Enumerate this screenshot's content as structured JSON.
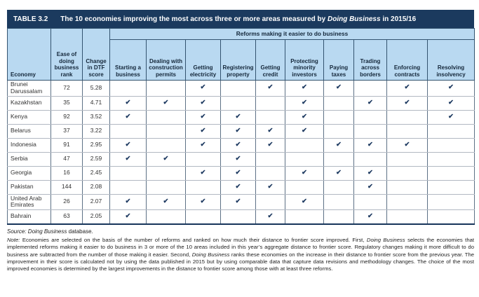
{
  "title_bar": {
    "label": "TABLE 3.2",
    "title_segments": [
      {
        "t": "The 10 economies improving the most across three or more areas measured by "
      },
      {
        "t": "Doing Business",
        "i": true
      },
      {
        "t": " in 2015/16"
      }
    ]
  },
  "table": {
    "reforms_group_header": "Reforms making it easier to do business",
    "fixed_columns": [
      "Economy",
      "Ease of doing business rank",
      "Change in DTF score"
    ],
    "reform_columns": [
      "Starting a business",
      "Dealing with construction permits",
      "Getting electricity",
      "Registering property",
      "Getting credit",
      "Protecting minority investors",
      "Paying taxes",
      "Trading across borders",
      "Enforcing contracts",
      "Resolving insolvency"
    ],
    "check_glyph": "✔",
    "rows": [
      {
        "economy": "Brunei Darussalam",
        "rank": "72",
        "dtf_change": "5.28",
        "reforms": [
          0,
          0,
          1,
          0,
          1,
          1,
          1,
          0,
          1,
          1
        ]
      },
      {
        "economy": "Kazakhstan",
        "rank": "35",
        "dtf_change": "4.71",
        "reforms": [
          1,
          1,
          1,
          0,
          0,
          1,
          0,
          1,
          1,
          1
        ]
      },
      {
        "economy": "Kenya",
        "rank": "92",
        "dtf_change": "3.52",
        "reforms": [
          1,
          0,
          1,
          1,
          0,
          1,
          0,
          0,
          0,
          1
        ]
      },
      {
        "economy": "Belarus",
        "rank": "37",
        "dtf_change": "3.22",
        "reforms": [
          0,
          0,
          1,
          1,
          1,
          1,
          0,
          0,
          0,
          0
        ]
      },
      {
        "economy": "Indonesia",
        "rank": "91",
        "dtf_change": "2.95",
        "reforms": [
          1,
          0,
          1,
          1,
          1,
          0,
          1,
          1,
          1,
          0
        ]
      },
      {
        "economy": "Serbia",
        "rank": "47",
        "dtf_change": "2.59",
        "reforms": [
          1,
          1,
          0,
          1,
          0,
          0,
          0,
          0,
          0,
          0
        ]
      },
      {
        "economy": "Georgia",
        "rank": "16",
        "dtf_change": "2.45",
        "reforms": [
          0,
          0,
          1,
          1,
          0,
          1,
          1,
          1,
          0,
          0
        ]
      },
      {
        "economy": "Pakistan",
        "rank": "144",
        "dtf_change": "2.08",
        "reforms": [
          0,
          0,
          0,
          1,
          1,
          0,
          0,
          1,
          0,
          0
        ]
      },
      {
        "economy": "United Arab Emirates",
        "rank": "26",
        "dtf_change": "2.07",
        "reforms": [
          1,
          1,
          1,
          1,
          0,
          1,
          0,
          0,
          0,
          0
        ]
      },
      {
        "economy": "Bahrain",
        "rank": "63",
        "dtf_change": "2.05",
        "reforms": [
          1,
          0,
          0,
          0,
          1,
          0,
          0,
          1,
          0,
          0
        ]
      }
    ]
  },
  "footer": {
    "source_segments": [
      {
        "t": "Source: ",
        "i": true
      },
      {
        "t": "Doing Business",
        "i": true
      },
      {
        "t": " database."
      }
    ],
    "note_segments": [
      {
        "t": "Note: ",
        "i": true
      },
      {
        "t": "Economies are selected on the basis of the number of reforms and ranked on how much their distance to frontier score improved. First, "
      },
      {
        "t": "Doing Business",
        "i": true
      },
      {
        "t": " selects the economies that implemented reforms making it easier to do business in 3 or more of the 10 areas included in this year’s aggregate distance to frontier score. Regulatory changes making it more difficult to do business are subtracted from the number of those making it easier. Second, "
      },
      {
        "t": "Doing Business",
        "i": true
      },
      {
        "t": " ranks these economies on the increase in their distance to frontier score from the previous year. The improvement in their score is calculated not by using the data published in 2015 but by using comparable data that capture data revisions and methodology changes. The choice of the most improved economies is determined by the largest improvements in the distance to frontier score among those with at least three reforms."
      }
    ]
  },
  "colors": {
    "title_bar_bg": "#1b3a5e",
    "header_bg": "#b9d9f1",
    "check": "#1e3a61",
    "grid_vertical": "#5d7186",
    "grid_horizontal": "#b2b8c2",
    "table_bottom_border": "#17355a"
  }
}
